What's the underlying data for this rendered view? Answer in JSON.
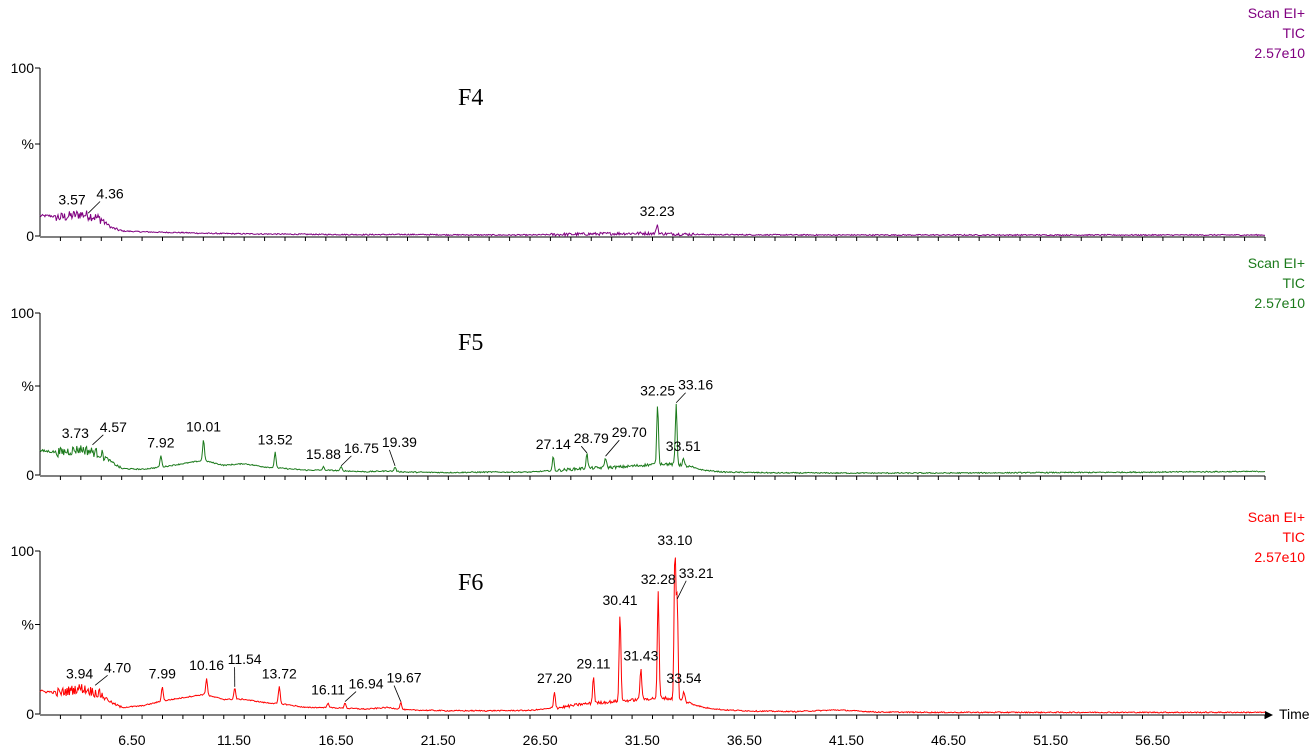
{
  "chart_data": {
    "type": "line",
    "x_axis": {
      "range": [
        2.0,
        62.0
      ],
      "tick_labels": [
        "6.50",
        "11.50",
        "16.50",
        "21.50",
        "26.50",
        "31.50",
        "36.50",
        "41.50",
        "46.50",
        "51.50",
        "56.50"
      ],
      "label": "Time"
    },
    "panels": [
      {
        "title": "F4",
        "color": "#800080",
        "scan_mode": "Scan EI+",
        "trace_type": "TIC",
        "max_intensity": "2.57e10",
        "y_tick_labels": [
          "100",
          "%",
          "0"
        ],
        "ylim": [
          0,
          100
        ],
        "peaks": [
          {
            "rt": 3.57,
            "height": 14,
            "label": "3.57"
          },
          {
            "rt": 4.36,
            "height": 13,
            "label": "4.36"
          },
          {
            "rt": 32.23,
            "height": 7,
            "label": "32.23"
          }
        ],
        "baseline": [
          [
            2.0,
            12
          ],
          [
            2.5,
            12
          ],
          [
            3.0,
            11
          ],
          [
            3.5,
            12
          ],
          [
            4.0,
            13
          ],
          [
            4.5,
            12
          ],
          [
            5.0,
            10
          ],
          [
            5.5,
            5
          ],
          [
            6.0,
            3
          ],
          [
            7.0,
            2.5
          ],
          [
            8.0,
            2.2
          ],
          [
            9.0,
            2.0
          ],
          [
            10.0,
            1.6
          ],
          [
            12.0,
            1.3
          ],
          [
            14.0,
            1.1
          ],
          [
            16.0,
            0.9
          ],
          [
            18.0,
            0.8
          ],
          [
            20.0,
            0.9
          ],
          [
            22.0,
            0.7
          ],
          [
            24.0,
            0.6
          ],
          [
            26.0,
            0.6
          ],
          [
            28.0,
            1.0
          ],
          [
            30.0,
            1.4
          ],
          [
            31.5,
            1.6
          ],
          [
            33.0,
            1.2
          ],
          [
            35.0,
            0.8
          ],
          [
            40.0,
            0.6
          ],
          [
            45.0,
            0.6
          ],
          [
            50.0,
            0.6
          ],
          [
            55.0,
            0.6
          ],
          [
            62.0,
            0.6
          ]
        ]
      },
      {
        "title": "F5",
        "color": "#1b7a1b",
        "scan_mode": "Scan EI+",
        "trace_type": "TIC",
        "max_intensity": "2.57e10",
        "y_tick_labels": [
          "100",
          "%",
          "0"
        ],
        "ylim": [
          0,
          100
        ],
        "peaks": [
          {
            "rt": 3.73,
            "height": 18,
            "label": "3.73"
          },
          {
            "rt": 4.57,
            "height": 18,
            "label": "4.57"
          },
          {
            "rt": 7.92,
            "height": 12,
            "label": "7.92"
          },
          {
            "rt": 10.01,
            "height": 22,
            "label": "10.01"
          },
          {
            "rt": 13.52,
            "height": 14,
            "label": "13.52"
          },
          {
            "rt": 15.88,
            "height": 5,
            "label": "15.88"
          },
          {
            "rt": 16.75,
            "height": 5,
            "label": "16.75"
          },
          {
            "rt": 19.39,
            "height": 5,
            "label": "19.39"
          },
          {
            "rt": 27.14,
            "height": 11,
            "label": "27.14"
          },
          {
            "rt": 28.79,
            "height": 13,
            "label": "28.79"
          },
          {
            "rt": 29.7,
            "height": 11,
            "label": "29.70"
          },
          {
            "rt": 32.25,
            "height": 44,
            "label": "32.25"
          },
          {
            "rt": 33.16,
            "height": 44,
            "label": "33.16"
          },
          {
            "rt": 33.51,
            "height": 10,
            "label": "33.51"
          }
        ],
        "baseline": [
          [
            2.0,
            15
          ],
          [
            3.0,
            14
          ],
          [
            4.0,
            16
          ],
          [
            5.0,
            13
          ],
          [
            5.5,
            8
          ],
          [
            6.0,
            4
          ],
          [
            7.0,
            3.5
          ],
          [
            8.0,
            5
          ],
          [
            9.0,
            7
          ],
          [
            10.0,
            9
          ],
          [
            11.0,
            6
          ],
          [
            12.0,
            7
          ],
          [
            13.0,
            5
          ],
          [
            14.0,
            4
          ],
          [
            15.0,
            3
          ],
          [
            16.0,
            3
          ],
          [
            17.0,
            2.5
          ],
          [
            18.0,
            2
          ],
          [
            19.0,
            2.5
          ],
          [
            20.0,
            1.8
          ],
          [
            22.0,
            1.5
          ],
          [
            24.0,
            1.8
          ],
          [
            26.0,
            1.8
          ],
          [
            27.5,
            3
          ],
          [
            28.5,
            4
          ],
          [
            29.5,
            4.5
          ],
          [
            30.5,
            5
          ],
          [
            31.5,
            6
          ],
          [
            32.5,
            7
          ],
          [
            33.5,
            6
          ],
          [
            34.5,
            3
          ],
          [
            35.5,
            1.8
          ],
          [
            38.0,
            1.3
          ],
          [
            42.0,
            1.2
          ],
          [
            46.0,
            1.2
          ],
          [
            50.0,
            1.4
          ],
          [
            54.0,
            1.6
          ],
          [
            58.0,
            1.9
          ],
          [
            62.0,
            2.2
          ]
        ]
      },
      {
        "title": "F6",
        "color": "#ff0000",
        "scan_mode": "Scan EI+",
        "trace_type": "TIC",
        "max_intensity": "2.57e10",
        "y_tick_labels": [
          "100",
          "%",
          "0"
        ],
        "ylim": [
          0,
          100
        ],
        "peaks": [
          {
            "rt": 3.94,
            "height": 17,
            "label": "3.94"
          },
          {
            "rt": 4.7,
            "height": 17,
            "label": "4.70"
          },
          {
            "rt": 7.99,
            "height": 17,
            "label": "7.99"
          },
          {
            "rt": 10.16,
            "height": 22,
            "label": "10.16"
          },
          {
            "rt": 11.54,
            "height": 16,
            "label": "11.54"
          },
          {
            "rt": 13.72,
            "height": 17,
            "label": "13.72"
          },
          {
            "rt": 16.11,
            "height": 7,
            "label": "16.11"
          },
          {
            "rt": 16.94,
            "height": 7,
            "label": "16.94"
          },
          {
            "rt": 19.67,
            "height": 7,
            "label": "19.67"
          },
          {
            "rt": 27.2,
            "height": 14,
            "label": "27.20"
          },
          {
            "rt": 29.11,
            "height": 23,
            "label": "29.11"
          },
          {
            "rt": 30.41,
            "height": 62,
            "label": "30.41"
          },
          {
            "rt": 31.43,
            "height": 28,
            "label": "31.43"
          },
          {
            "rt": 32.28,
            "height": 75,
            "label": "32.28"
          },
          {
            "rt": 33.1,
            "height": 100,
            "label": "33.10"
          },
          {
            "rt": 33.21,
            "height": 70,
            "label": "33.21"
          },
          {
            "rt": 33.54,
            "height": 14,
            "label": "33.54"
          }
        ],
        "baseline": [
          [
            2.0,
            14
          ],
          [
            3.0,
            13
          ],
          [
            4.0,
            16
          ],
          [
            5.0,
            12
          ],
          [
            5.5,
            7
          ],
          [
            6.0,
            4
          ],
          [
            7.0,
            5
          ],
          [
            8.0,
            8
          ],
          [
            9.0,
            10
          ],
          [
            10.0,
            12
          ],
          [
            11.0,
            9
          ],
          [
            12.0,
            9
          ],
          [
            13.0,
            7
          ],
          [
            14.0,
            6
          ],
          [
            15.0,
            4
          ],
          [
            16.0,
            4
          ],
          [
            17.0,
            3.5
          ],
          [
            18.0,
            3
          ],
          [
            19.0,
            4
          ],
          [
            20.0,
            2.5
          ],
          [
            22.0,
            2
          ],
          [
            24.0,
            2
          ],
          [
            26.0,
            2.2
          ],
          [
            27.5,
            4
          ],
          [
            28.5,
            6
          ],
          [
            29.5,
            7
          ],
          [
            30.5,
            8
          ],
          [
            31.5,
            9
          ],
          [
            32.5,
            10
          ],
          [
            33.5,
            8
          ],
          [
            34.5,
            4
          ],
          [
            35.5,
            2.5
          ],
          [
            37.0,
            1.8
          ],
          [
            39.0,
            1.5
          ],
          [
            41.0,
            2.5
          ],
          [
            43.0,
            1.2
          ],
          [
            46.0,
            1.0
          ],
          [
            50.0,
            1.0
          ],
          [
            55.0,
            1.0
          ],
          [
            62.0,
            1.0
          ]
        ]
      }
    ]
  }
}
